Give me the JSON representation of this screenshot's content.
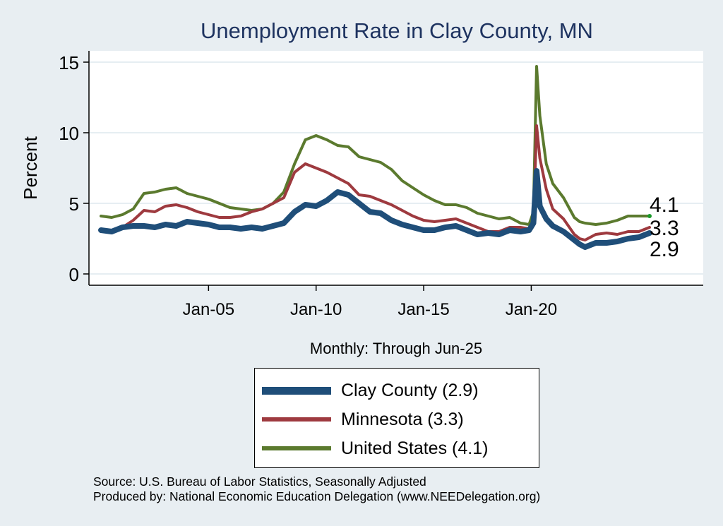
{
  "chart_data": {
    "type": "line",
    "title": "Unemployment Rate in Clay  County, MN",
    "ylabel": "Percent",
    "xlabel": "Monthly: Through Jun-25",
    "ylim": [
      0,
      16
    ],
    "yticks": [
      "0",
      "5",
      "10",
      "15"
    ],
    "xlim": [
      2000.0,
      2026.0
    ],
    "xticks": [
      {
        "value": 2005.0,
        "label": "Jan-05"
      },
      {
        "value": 2010.0,
        "label": "Jan-10"
      },
      {
        "value": 2015.0,
        "label": "Jan-15"
      },
      {
        "value": 2020.0,
        "label": "Jan-20"
      }
    ],
    "grid": true,
    "legend_position": "bottom",
    "series": [
      {
        "name": "Clay  County (2.9)",
        "color": "#1f4e79",
        "end_label": "2.9",
        "points": [
          [
            2000.0,
            3.1
          ],
          [
            2000.5,
            3.0
          ],
          [
            2001.0,
            3.3
          ],
          [
            2001.5,
            3.4
          ],
          [
            2002.0,
            3.4
          ],
          [
            2002.5,
            3.3
          ],
          [
            2003.0,
            3.5
          ],
          [
            2003.5,
            3.4
          ],
          [
            2004.0,
            3.7
          ],
          [
            2004.5,
            3.6
          ],
          [
            2005.0,
            3.5
          ],
          [
            2005.5,
            3.3
          ],
          [
            2006.0,
            3.3
          ],
          [
            2006.5,
            3.2
          ],
          [
            2007.0,
            3.3
          ],
          [
            2007.5,
            3.2
          ],
          [
            2008.0,
            3.4
          ],
          [
            2008.5,
            3.6
          ],
          [
            2009.0,
            4.4
          ],
          [
            2009.5,
            4.9
          ],
          [
            2010.0,
            4.8
          ],
          [
            2010.5,
            5.2
          ],
          [
            2011.0,
            5.8
          ],
          [
            2011.5,
            5.6
          ],
          [
            2012.0,
            5.0
          ],
          [
            2012.5,
            4.4
          ],
          [
            2013.0,
            4.3
          ],
          [
            2013.5,
            3.8
          ],
          [
            2014.0,
            3.5
          ],
          [
            2014.5,
            3.3
          ],
          [
            2015.0,
            3.1
          ],
          [
            2015.5,
            3.1
          ],
          [
            2016.0,
            3.3
          ],
          [
            2016.5,
            3.4
          ],
          [
            2017.0,
            3.1
          ],
          [
            2017.5,
            2.8
          ],
          [
            2018.0,
            2.9
          ],
          [
            2018.5,
            2.8
          ],
          [
            2019.0,
            3.1
          ],
          [
            2019.5,
            3.0
          ],
          [
            2019.9,
            3.1
          ],
          [
            2020.1,
            3.6
          ],
          [
            2020.25,
            7.3
          ],
          [
            2020.4,
            4.8
          ],
          [
            2020.7,
            3.9
          ],
          [
            2021.0,
            3.4
          ],
          [
            2021.5,
            3.0
          ],
          [
            2022.0,
            2.4
          ],
          [
            2022.25,
            2.1
          ],
          [
            2022.5,
            1.9
          ],
          [
            2023.0,
            2.2
          ],
          [
            2023.5,
            2.2
          ],
          [
            2024.0,
            2.3
          ],
          [
            2024.5,
            2.5
          ],
          [
            2025.0,
            2.6
          ],
          [
            2025.5,
            2.9
          ]
        ]
      },
      {
        "name": "Minnesota (3.3)",
        "color": "#9e3a3f",
        "end_label": "3.3",
        "points": [
          [
            2000.0,
            3.0
          ],
          [
            2000.5,
            3.0
          ],
          [
            2001.0,
            3.3
          ],
          [
            2001.5,
            3.8
          ],
          [
            2002.0,
            4.5
          ],
          [
            2002.5,
            4.4
          ],
          [
            2003.0,
            4.8
          ],
          [
            2003.5,
            4.9
          ],
          [
            2004.0,
            4.7
          ],
          [
            2004.5,
            4.4
          ],
          [
            2005.0,
            4.2
          ],
          [
            2005.5,
            4.0
          ],
          [
            2006.0,
            4.0
          ],
          [
            2006.5,
            4.1
          ],
          [
            2007.0,
            4.4
          ],
          [
            2007.5,
            4.6
          ],
          [
            2008.0,
            5.0
          ],
          [
            2008.5,
            5.4
          ],
          [
            2009.0,
            7.2
          ],
          [
            2009.5,
            7.8
          ],
          [
            2010.0,
            7.5
          ],
          [
            2010.5,
            7.2
          ],
          [
            2011.0,
            6.8
          ],
          [
            2011.5,
            6.4
          ],
          [
            2012.0,
            5.6
          ],
          [
            2012.5,
            5.5
          ],
          [
            2013.0,
            5.2
          ],
          [
            2013.5,
            4.9
          ],
          [
            2014.0,
            4.5
          ],
          [
            2014.5,
            4.1
          ],
          [
            2015.0,
            3.8
          ],
          [
            2015.5,
            3.7
          ],
          [
            2016.0,
            3.8
          ],
          [
            2016.5,
            3.9
          ],
          [
            2017.0,
            3.6
          ],
          [
            2017.5,
            3.3
          ],
          [
            2018.0,
            3.0
          ],
          [
            2018.5,
            3.0
          ],
          [
            2019.0,
            3.3
          ],
          [
            2019.5,
            3.3
          ],
          [
            2019.9,
            3.2
          ],
          [
            2020.1,
            3.7
          ],
          [
            2020.25,
            10.5
          ],
          [
            2020.4,
            8.2
          ],
          [
            2020.7,
            6.0
          ],
          [
            2021.0,
            4.6
          ],
          [
            2021.5,
            3.9
          ],
          [
            2022.0,
            2.8
          ],
          [
            2022.25,
            2.5
          ],
          [
            2022.5,
            2.4
          ],
          [
            2023.0,
            2.8
          ],
          [
            2023.5,
            2.9
          ],
          [
            2024.0,
            2.8
          ],
          [
            2024.5,
            3.0
          ],
          [
            2025.0,
            3.0
          ],
          [
            2025.5,
            3.3
          ]
        ]
      },
      {
        "name": "United States (4.1)",
        "color": "#5b7a2e",
        "end_label": "4.1",
        "points": [
          [
            2000.0,
            4.1
          ],
          [
            2000.5,
            4.0
          ],
          [
            2001.0,
            4.2
          ],
          [
            2001.5,
            4.6
          ],
          [
            2002.0,
            5.7
          ],
          [
            2002.5,
            5.8
          ],
          [
            2003.0,
            6.0
          ],
          [
            2003.5,
            6.1
          ],
          [
            2004.0,
            5.7
          ],
          [
            2004.5,
            5.5
          ],
          [
            2005.0,
            5.3
          ],
          [
            2005.5,
            5.0
          ],
          [
            2006.0,
            4.7
          ],
          [
            2006.5,
            4.6
          ],
          [
            2007.0,
            4.5
          ],
          [
            2007.5,
            4.6
          ],
          [
            2008.0,
            5.0
          ],
          [
            2008.5,
            5.8
          ],
          [
            2009.0,
            7.8
          ],
          [
            2009.5,
            9.5
          ],
          [
            2010.0,
            9.8
          ],
          [
            2010.5,
            9.5
          ],
          [
            2011.0,
            9.1
          ],
          [
            2011.5,
            9.0
          ],
          [
            2012.0,
            8.3
          ],
          [
            2012.5,
            8.1
          ],
          [
            2013.0,
            7.9
          ],
          [
            2013.5,
            7.4
          ],
          [
            2014.0,
            6.6
          ],
          [
            2014.5,
            6.1
          ],
          [
            2015.0,
            5.6
          ],
          [
            2015.5,
            5.2
          ],
          [
            2016.0,
            4.9
          ],
          [
            2016.5,
            4.9
          ],
          [
            2017.0,
            4.7
          ],
          [
            2017.5,
            4.3
          ],
          [
            2018.0,
            4.1
          ],
          [
            2018.5,
            3.9
          ],
          [
            2019.0,
            4.0
          ],
          [
            2019.5,
            3.6
          ],
          [
            2019.9,
            3.5
          ],
          [
            2020.1,
            4.4
          ],
          [
            2020.25,
            14.7
          ],
          [
            2020.4,
            11.2
          ],
          [
            2020.7,
            7.8
          ],
          [
            2021.0,
            6.4
          ],
          [
            2021.5,
            5.4
          ],
          [
            2022.0,
            4.0
          ],
          [
            2022.25,
            3.7
          ],
          [
            2022.5,
            3.6
          ],
          [
            2023.0,
            3.5
          ],
          [
            2023.5,
            3.6
          ],
          [
            2024.0,
            3.8
          ],
          [
            2024.5,
            4.1
          ],
          [
            2025.0,
            4.1
          ],
          [
            2025.5,
            4.1
          ]
        ]
      }
    ]
  },
  "source": {
    "line1": "Source: U.S. Bureau of Labor Statistics, Seasonally Adjusted",
    "line2": "Produced by: National Economic Education Delegation (www.NEEDelegation.org)"
  }
}
